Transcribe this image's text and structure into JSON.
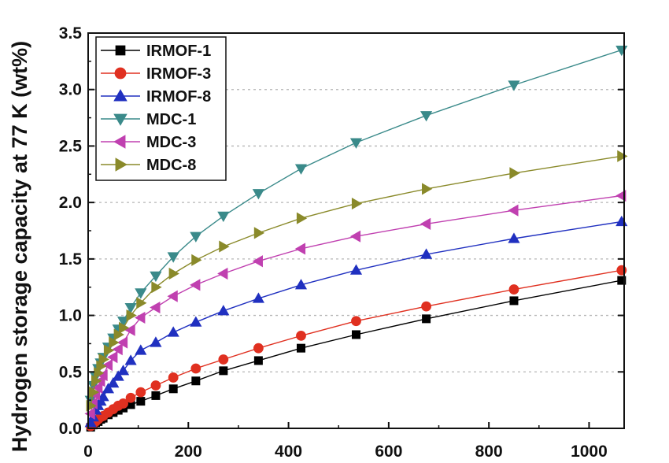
{
  "chart_data": {
    "type": "line",
    "title": "",
    "xlabel": "",
    "ylabel": "Hydrogen storage capacity at 77 K (wt%)",
    "xlim": [
      0,
      1070
    ],
    "ylim": [
      0,
      3.5
    ],
    "x_ticks": [
      0,
      200,
      400,
      600,
      800,
      1000
    ],
    "x_tick_labels": [
      "0",
      "200",
      "400",
      "600",
      "800",
      "1000"
    ],
    "y_ticks": [
      0,
      0.5,
      1.0,
      1.5,
      2.0,
      2.5,
      3.0,
      3.5
    ],
    "y_tick_labels": [
      "0.0",
      "0.5",
      "1.0",
      "1.5",
      "2.0",
      "2.5",
      "3.0",
      "3.5"
    ],
    "grid": "horizontal dotted",
    "legend_position": "top-left",
    "x": [
      5,
      10,
      15,
      20,
      25,
      30,
      40,
      50,
      60,
      70,
      85,
      105,
      135,
      170,
      215,
      270,
      340,
      425,
      535,
      675,
      850,
      1065
    ],
    "series": [
      {
        "name": "IRMOF-1",
        "color": "#000000",
        "marker": "square",
        "values": [
          0.01,
          0.03,
          0.05,
          0.06,
          0.08,
          0.09,
          0.12,
          0.14,
          0.16,
          0.18,
          0.21,
          0.24,
          0.29,
          0.35,
          0.42,
          0.51,
          0.6,
          0.71,
          0.83,
          0.97,
          1.13,
          1.31
        ]
      },
      {
        "name": "IRMOF-3",
        "color": "#e03020",
        "marker": "circle",
        "values": [
          0.02,
          0.04,
          0.06,
          0.08,
          0.1,
          0.11,
          0.14,
          0.17,
          0.2,
          0.22,
          0.27,
          0.32,
          0.38,
          0.45,
          0.53,
          0.61,
          0.71,
          0.82,
          0.95,
          1.08,
          1.23,
          1.4
        ]
      },
      {
        "name": "IRMOF-8",
        "color": "#2030c0",
        "marker": "triangle-up",
        "values": [
          0.05,
          0.1,
          0.16,
          0.2,
          0.24,
          0.28,
          0.35,
          0.4,
          0.46,
          0.51,
          0.6,
          0.69,
          0.76,
          0.85,
          0.94,
          1.04,
          1.15,
          1.27,
          1.4,
          1.54,
          1.68,
          1.83
        ]
      },
      {
        "name": "MDC-1",
        "color": "#3a8a8a",
        "marker": "triangle-down",
        "values": [
          0.25,
          0.38,
          0.46,
          0.53,
          0.58,
          0.63,
          0.72,
          0.8,
          0.88,
          0.95,
          1.07,
          1.2,
          1.35,
          1.52,
          1.7,
          1.88,
          2.08,
          2.3,
          2.53,
          2.77,
          3.04,
          3.35
        ]
      },
      {
        "name": "MDC-3",
        "color": "#c040b0",
        "marker": "triangle-left",
        "values": [
          0.13,
          0.22,
          0.3,
          0.36,
          0.42,
          0.47,
          0.56,
          0.63,
          0.7,
          0.76,
          0.87,
          0.98,
          1.07,
          1.17,
          1.27,
          1.37,
          1.48,
          1.59,
          1.7,
          1.81,
          1.93,
          2.06
        ]
      },
      {
        "name": "MDC-8",
        "color": "#8a8a2a",
        "marker": "triangle-right",
        "values": [
          0.2,
          0.32,
          0.42,
          0.49,
          0.55,
          0.61,
          0.69,
          0.76,
          0.83,
          0.89,
          1.0,
          1.11,
          1.25,
          1.37,
          1.49,
          1.61,
          1.73,
          1.86,
          1.99,
          2.12,
          2.26,
          2.41
        ]
      }
    ]
  }
}
